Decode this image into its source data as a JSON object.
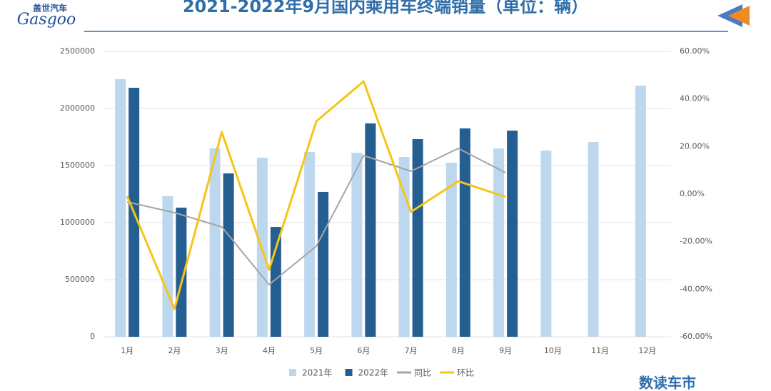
{
  "chart_data": {
    "type": "bar-line",
    "title": "2021-2022年9月国内乘用车终端销量（单位：辆）",
    "brand": "盖世汽车",
    "logo": "Gasgoo",
    "footer": "数读车市",
    "categories": [
      "1月",
      "2月",
      "3月",
      "4月",
      "5月",
      "6月",
      "7月",
      "8月",
      "9月",
      "10月",
      "11月",
      "12月"
    ],
    "series": [
      {
        "name": "2021年",
        "type": "bar",
        "color": "#bdd7ee",
        "values": [
          2256000,
          1231000,
          1650000,
          1569000,
          1619000,
          1612000,
          1575000,
          1525000,
          1650000,
          1631000,
          1706000,
          2200000
        ]
      },
      {
        "name": "2022年",
        "type": "bar",
        "color": "#255e91",
        "values": [
          2181000,
          1131000,
          1431000,
          962000,
          1269000,
          1869000,
          1731000,
          1825000,
          1806000,
          null,
          null,
          null
        ]
      },
      {
        "name": "同比",
        "type": "line",
        "axis": "y2",
        "color": "#a5a5a5",
        "values": [
          -3.3,
          -7.8,
          -13.8,
          -38.1,
          -21.9,
          16.2,
          9.6,
          19.2,
          9.0,
          null,
          null,
          null
        ]
      },
      {
        "name": "环比",
        "type": "line",
        "axis": "y2",
        "color": "#f5c518",
        "values": [
          -0.9,
          -48.3,
          26.1,
          -31.8,
          30.6,
          47.4,
          -7.5,
          5.4,
          -1.2,
          null,
          null,
          null
        ]
      }
    ],
    "ylim": [
      0,
      2500000
    ],
    "yticks": [
      0,
      500000,
      1000000,
      1500000,
      2000000,
      2500000
    ],
    "y2lim": [
      -60,
      60
    ],
    "y2ticks": [
      {
        "value": -60,
        "label": "-60.00%"
      },
      {
        "value": -40,
        "label": "-40.00%"
      },
      {
        "value": -20,
        "label": "-20.00%"
      },
      {
        "value": 0,
        "label": "0.00%"
      },
      {
        "value": 20,
        "label": "20.00%"
      },
      {
        "value": 40,
        "label": "40.00%"
      },
      {
        "value": 60,
        "label": "60.00%"
      }
    ],
    "grid": true
  }
}
